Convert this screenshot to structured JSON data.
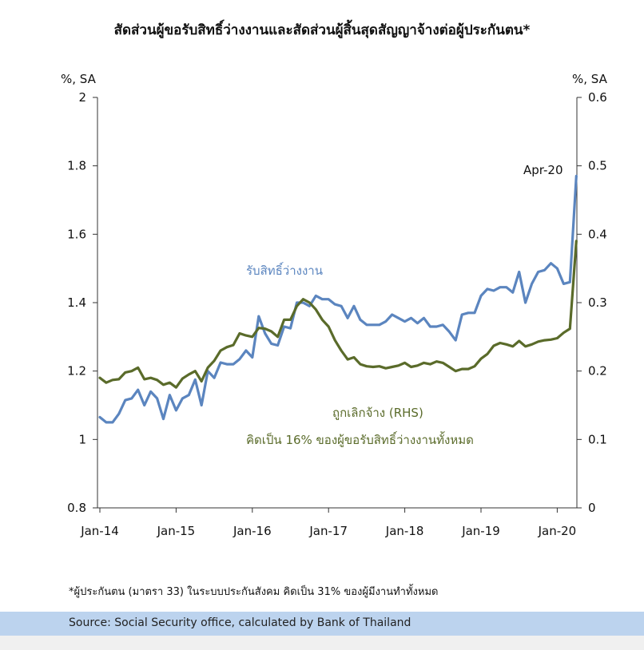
{
  "footnote": "*ผู้ประกันตน (มาตรา 33) ในระบบประกันสังคม คิดเป็น 31% ของผู้มีงานทำทั้งหมด",
  "source": "Source: Social Security office, calculated by Bank of Thailand",
  "colors": {
    "claims": "#5b85bf",
    "laidoff": "#5a6b2a"
  },
  "chart_data": {
    "type": "line",
    "title": "สัดส่วนผู้ขอรับสิทธิ์ว่างงานและสัดส่วนผู้สิ้นสุดสัญญาจ้างต่อผู้ประกันตน*",
    "y_unit_left": "%, SA",
    "y_unit_right": "%, SA",
    "ylim_left": [
      0.8,
      2.0
    ],
    "ylim_right": [
      0,
      0.6
    ],
    "yticks_left": [
      "0.8",
      "1",
      "1.2",
      "1.4",
      "1.6",
      "1.8",
      "2"
    ],
    "yticks_right": [
      "0",
      "0.1",
      "0.2",
      "0.3",
      "0.4",
      "0.5",
      "0.6"
    ],
    "xticks": [
      "Jan-14",
      "Jan-15",
      "Jan-16",
      "Jan-17",
      "Jan-18",
      "Jan-19",
      "Jan-20"
    ],
    "x_start": "2014-01",
    "grid": false,
    "annotation": "Apr-20",
    "series": [
      {
        "name": "รับสิทธิ์ว่างงาน",
        "axis": "left",
        "values": [
          1.065,
          1.05,
          1.05,
          1.075,
          1.115,
          1.12,
          1.145,
          1.1,
          1.14,
          1.12,
          1.06,
          1.13,
          1.085,
          1.12,
          1.13,
          1.175,
          1.1,
          1.2,
          1.18,
          1.225,
          1.22,
          1.22,
          1.235,
          1.26,
          1.24,
          1.36,
          1.31,
          1.28,
          1.275,
          1.33,
          1.325,
          1.4,
          1.4,
          1.39,
          1.42,
          1.41,
          1.41,
          1.395,
          1.39,
          1.355,
          1.39,
          1.35,
          1.335,
          1.335,
          1.335,
          1.345,
          1.365,
          1.355,
          1.345,
          1.355,
          1.34,
          1.355,
          1.33,
          1.33,
          1.335,
          1.315,
          1.29,
          1.365,
          1.37,
          1.37,
          1.42,
          1.44,
          1.435,
          1.445,
          1.445,
          1.43,
          1.49,
          1.4,
          1.455,
          1.49,
          1.495,
          1.515,
          1.5,
          1.455,
          1.46,
          1.77
        ]
      },
      {
        "name": "ถูกเลิกจ้าง (RHS)",
        "note": "คิดเป็น 16% ของผู้ขอรับสิทธิ์ว่างงานทั้งหมด",
        "axis": "right",
        "values": [
          0.19,
          0.183,
          0.187,
          0.188,
          0.198,
          0.2,
          0.205,
          0.188,
          0.19,
          0.187,
          0.18,
          0.183,
          0.176,
          0.189,
          0.195,
          0.2,
          0.185,
          0.205,
          0.215,
          0.23,
          0.235,
          0.238,
          0.255,
          0.252,
          0.25,
          0.263,
          0.262,
          0.258,
          0.25,
          0.275,
          0.275,
          0.295,
          0.305,
          0.3,
          0.29,
          0.275,
          0.265,
          0.245,
          0.23,
          0.217,
          0.22,
          0.21,
          0.207,
          0.206,
          0.207,
          0.204,
          0.206,
          0.208,
          0.212,
          0.206,
          0.208,
          0.212,
          0.21,
          0.214,
          0.212,
          0.206,
          0.2,
          0.203,
          0.203,
          0.207,
          0.218,
          0.225,
          0.237,
          0.241,
          0.239,
          0.236,
          0.244,
          0.236,
          0.239,
          0.243,
          0.245,
          0.246,
          0.248,
          0.256,
          0.262,
          0.39
        ]
      }
    ]
  }
}
